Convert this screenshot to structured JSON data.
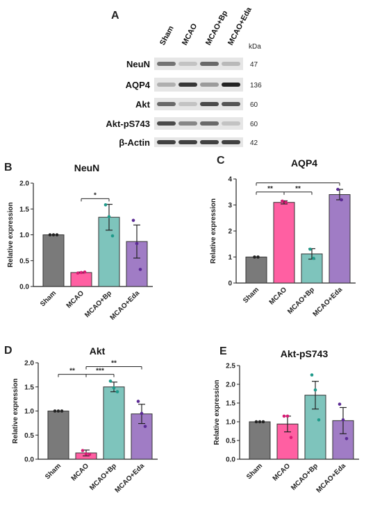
{
  "blot": {
    "panel": "A",
    "lanes": [
      "Sham",
      "MCAO",
      "MCAO+Bp",
      "MCAO+Eda"
    ],
    "unit": "kDa",
    "rows": [
      {
        "label": "NeuN",
        "kda": "47",
        "intensity": [
          0.55,
          0.15,
          0.6,
          0.2
        ]
      },
      {
        "label": "AQP4",
        "kda": "136",
        "intensity": [
          0.25,
          0.85,
          0.35,
          0.95
        ]
      },
      {
        "label": "Akt",
        "kda": "60",
        "intensity": [
          0.6,
          0.15,
          0.75,
          0.7
        ]
      },
      {
        "label": "Akt-pS743",
        "kda": "60",
        "intensity": [
          0.75,
          0.45,
          0.6,
          0.15
        ]
      },
      {
        "label": "β-Actin",
        "kda": "42",
        "intensity": [
          0.8,
          0.8,
          0.8,
          0.8
        ]
      }
    ]
  },
  "colors": {
    "Sham": "#7a7a7a",
    "MCAO": "#ff5fa2",
    "MCAO+Bp": "#7ec4bc",
    "MCAO+Eda": "#a07cc5",
    "dots": [
      "#222222",
      "#d81b75",
      "#1f9a8a",
      "#5b2a94"
    ]
  },
  "chart_data": [
    {
      "panel": "B",
      "type": "bar",
      "title": "NeuN",
      "ylabel": "Relative expression",
      "categories": [
        "Sham",
        "MCAO",
        "MCAO+Bp",
        "MCAO+Eda"
      ],
      "values": [
        1.0,
        0.27,
        1.34,
        0.87
      ],
      "errors": [
        0.0,
        0.01,
        0.25,
        0.32
      ],
      "points": [
        [
          1.0,
          1.0,
          1.0
        ],
        [
          0.26,
          0.27,
          0.28
        ],
        [
          1.58,
          1.35,
          0.98
        ],
        [
          1.28,
          0.83,
          0.33
        ]
      ],
      "ylim": [
        0,
        2.0
      ],
      "yticks": [
        "0.0",
        "0.5",
        "1.0",
        "1.5",
        "2.0"
      ],
      "significance": [
        {
          "from": 1,
          "to": 2,
          "label": "*",
          "y": 1.7
        }
      ]
    },
    {
      "panel": "C",
      "type": "bar",
      "title": "AQP4",
      "ylabel": "Relative expression",
      "categories": [
        "Sham",
        "MCAO",
        "MCAO+Bp",
        "MCAO+Eda"
      ],
      "values": [
        1.0,
        3.1,
        1.12,
        3.4
      ],
      "errors": [
        0.0,
        0.06,
        0.2,
        0.2
      ],
      "points": [
        [
          1.0,
          1.0
        ],
        [
          3.15,
          3.1
        ],
        [
          1.3,
          0.95
        ],
        [
          3.6,
          3.2
        ]
      ],
      "ylim": [
        0,
        4
      ],
      "yticks": [
        "0",
        "1",
        "2",
        "3",
        "4"
      ],
      "significance": [
        {
          "from": 0,
          "to": 1,
          "label": "**",
          "y": 3.5
        },
        {
          "from": 1,
          "to": 2,
          "label": "**",
          "y": 3.5
        },
        {
          "from": 0,
          "to": 3,
          "label": "",
          "y": 3.85
        }
      ]
    },
    {
      "panel": "D",
      "type": "bar",
      "title": "Akt",
      "ylabel": "Relative expression",
      "categories": [
        "Sham",
        "MCAO",
        "MCAO+Bp",
        "MCAO+Eda"
      ],
      "values": [
        1.0,
        0.13,
        1.5,
        0.94
      ],
      "errors": [
        0.0,
        0.06,
        0.1,
        0.2
      ],
      "points": [
        [
          1.0,
          1.0,
          1.0
        ],
        [
          0.18,
          0.11,
          0.1
        ],
        [
          1.62,
          1.48,
          1.4
        ],
        [
          1.2,
          0.95,
          0.68
        ]
      ],
      "ylim": [
        0,
        2.0
      ],
      "yticks": [
        "0.0",
        "0.5",
        "1.0",
        "1.5",
        "2.0"
      ],
      "significance": [
        {
          "from": 0,
          "to": 1,
          "label": "**",
          "y": 1.76
        },
        {
          "from": 1,
          "to": 2,
          "label": "***",
          "y": 1.76
        },
        {
          "from": 1,
          "to": 3,
          "label": "**",
          "y": 1.92
        }
      ]
    },
    {
      "panel": "E",
      "type": "bar",
      "title": "Akt-pS743",
      "ylabel": "Relative expression",
      "categories": [
        "Sham",
        "MCAO",
        "MCAO+Bp",
        "MCAO+Eda"
      ],
      "values": [
        1.0,
        0.94,
        1.71,
        1.03
      ],
      "errors": [
        0.0,
        0.21,
        0.37,
        0.35
      ],
      "points": [
        [
          1.0,
          1.0,
          1.0
        ],
        [
          1.15,
          1.15,
          0.58
        ],
        [
          2.25,
          1.85,
          1.05
        ],
        [
          1.47,
          1.05,
          0.55
        ]
      ],
      "ylim": [
        0,
        2.5
      ],
      "yticks": [
        "0.0",
        "0.5",
        "1.0",
        "1.5",
        "2.0",
        "2.5"
      ],
      "significance": []
    }
  ]
}
